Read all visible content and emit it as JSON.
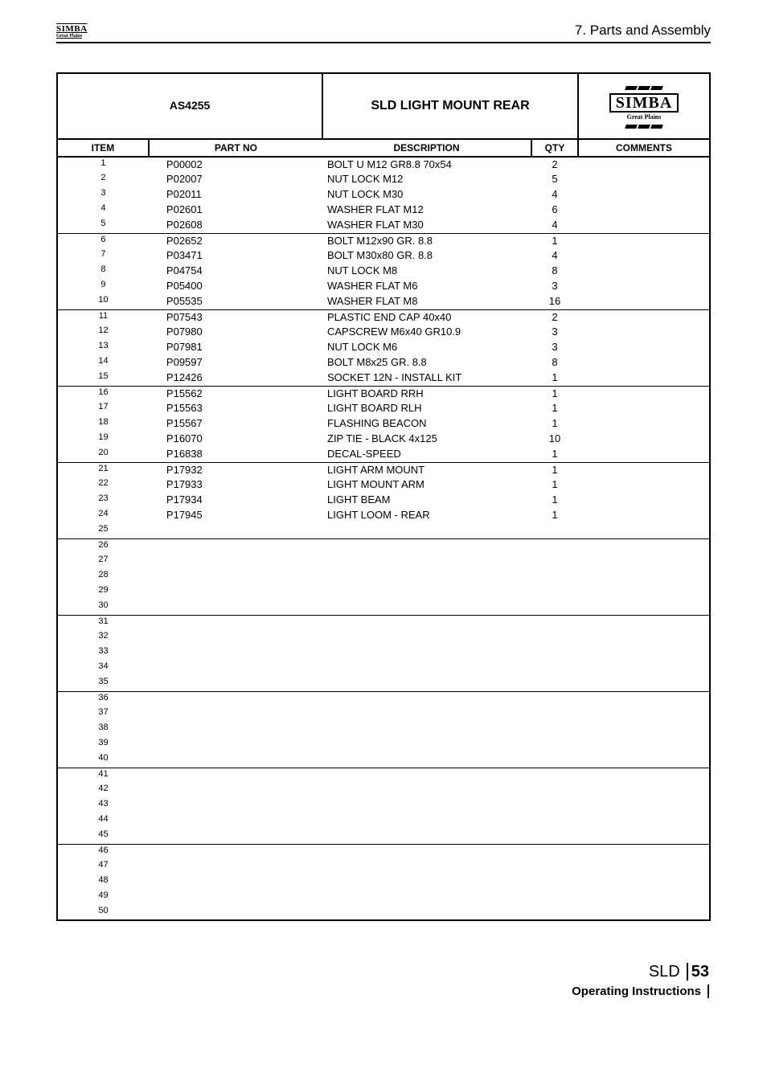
{
  "header": {
    "section_title": "7. Parts and Assembly",
    "small_logo_line1": "SIMBA",
    "small_logo_line2": "Great Plains"
  },
  "table_header": {
    "as_number": "AS4255",
    "title": "SLD LIGHT MOUNT REAR",
    "logo_text": "SIMBA",
    "logo_sub": "Great Plains"
  },
  "columns": {
    "item": "ITEM",
    "part": "PART NO",
    "desc": "DESCRIPTION",
    "qty": "QTY",
    "comm": "COMMENTS"
  },
  "rows": [
    {
      "item": "1",
      "part": "P00002",
      "desc": "BOLT U M12 GR8.8 70x54",
      "qty": "2",
      "sep": false
    },
    {
      "item": "2",
      "part": "P02007",
      "desc": "NUT LOCK M12",
      "qty": "5",
      "sep": false
    },
    {
      "item": "3",
      "part": "P02011",
      "desc": "NUT LOCK M30",
      "qty": "4",
      "sep": false
    },
    {
      "item": "4",
      "part": "P02601",
      "desc": "WASHER FLAT M12",
      "qty": "6",
      "sep": false
    },
    {
      "item": "5",
      "part": "P02608",
      "desc": "WASHER FLAT M30",
      "qty": "4",
      "sep": true
    },
    {
      "item": "6",
      "part": "P02652",
      "desc": "BOLT M12x90 GR. 8.8",
      "qty": "1",
      "sep": false
    },
    {
      "item": "7",
      "part": "P03471",
      "desc": "BOLT M30x80 GR. 8.8",
      "qty": "4",
      "sep": false
    },
    {
      "item": "8",
      "part": "P04754",
      "desc": "NUT LOCK M8",
      "qty": "8",
      "sep": false
    },
    {
      "item": "9",
      "part": "P05400",
      "desc": "WASHER FLAT M6",
      "qty": "3",
      "sep": false
    },
    {
      "item": "10",
      "part": "P05535",
      "desc": "WASHER FLAT M8",
      "qty": "16",
      "sep": true
    },
    {
      "item": "11",
      "part": "P07543",
      "desc": "PLASTIC END CAP 40x40",
      "qty": "2",
      "sep": false
    },
    {
      "item": "12",
      "part": "P07980",
      "desc": "CAPSCREW M6x40 GR10.9",
      "qty": "3",
      "sep": false
    },
    {
      "item": "13",
      "part": "P07981",
      "desc": "NUT LOCK M6",
      "qty": "3",
      "sep": false
    },
    {
      "item": "14",
      "part": "P09597",
      "desc": "BOLT M8x25 GR. 8.8",
      "qty": "8",
      "sep": false
    },
    {
      "item": "15",
      "part": "P12426",
      "desc": "SOCKET 12N - INSTALL KIT",
      "qty": "1",
      "sep": true
    },
    {
      "item": "16",
      "part": "P15562",
      "desc": "LIGHT BOARD RRH",
      "qty": "1",
      "sep": false
    },
    {
      "item": "17",
      "part": "P15563",
      "desc": "LIGHT BOARD RLH",
      "qty": "1",
      "sep": false
    },
    {
      "item": "18",
      "part": "P15567",
      "desc": "FLASHING BEACON",
      "qty": "1",
      "sep": false
    },
    {
      "item": "19",
      "part": "P16070",
      "desc": "ZIP TIE - BLACK 4x125",
      "qty": "10",
      "sep": false
    },
    {
      "item": "20",
      "part": "P16838",
      "desc": "DECAL-SPEED",
      "qty": "1",
      "sep": true
    },
    {
      "item": "21",
      "part": "P17932",
      "desc": "LIGHT ARM MOUNT",
      "qty": "1",
      "sep": false
    },
    {
      "item": "22",
      "part": "P17933",
      "desc": "LIGHT MOUNT ARM",
      "qty": "1",
      "sep": false
    },
    {
      "item": "23",
      "part": "P17934",
      "desc": "LIGHT BEAM",
      "qty": "1",
      "sep": false
    },
    {
      "item": "24",
      "part": "P17945",
      "desc": "LIGHT LOOM - REAR",
      "qty": "1",
      "sep": false
    },
    {
      "item": "25",
      "part": "",
      "desc": "",
      "qty": "",
      "sep": true
    },
    {
      "item": "26",
      "part": "",
      "desc": "",
      "qty": "",
      "sep": false
    },
    {
      "item": "27",
      "part": "",
      "desc": "",
      "qty": "",
      "sep": false
    },
    {
      "item": "28",
      "part": "",
      "desc": "",
      "qty": "",
      "sep": false
    },
    {
      "item": "29",
      "part": "",
      "desc": "",
      "qty": "",
      "sep": false
    },
    {
      "item": "30",
      "part": "",
      "desc": "",
      "qty": "",
      "sep": true
    },
    {
      "item": "31",
      "part": "",
      "desc": "",
      "qty": "",
      "sep": false
    },
    {
      "item": "32",
      "part": "",
      "desc": "",
      "qty": "",
      "sep": false
    },
    {
      "item": "33",
      "part": "",
      "desc": "",
      "qty": "",
      "sep": false
    },
    {
      "item": "34",
      "part": "",
      "desc": "",
      "qty": "",
      "sep": false
    },
    {
      "item": "35",
      "part": "",
      "desc": "",
      "qty": "",
      "sep": true
    },
    {
      "item": "36",
      "part": "",
      "desc": "",
      "qty": "",
      "sep": false
    },
    {
      "item": "37",
      "part": "",
      "desc": "",
      "qty": "",
      "sep": false
    },
    {
      "item": "38",
      "part": "",
      "desc": "",
      "qty": "",
      "sep": false
    },
    {
      "item": "39",
      "part": "",
      "desc": "",
      "qty": "",
      "sep": false
    },
    {
      "item": "40",
      "part": "",
      "desc": "",
      "qty": "",
      "sep": true
    },
    {
      "item": "41",
      "part": "",
      "desc": "",
      "qty": "",
      "sep": false
    },
    {
      "item": "42",
      "part": "",
      "desc": "",
      "qty": "",
      "sep": false
    },
    {
      "item": "43",
      "part": "",
      "desc": "",
      "qty": "",
      "sep": false
    },
    {
      "item": "44",
      "part": "",
      "desc": "",
      "qty": "",
      "sep": false
    },
    {
      "item": "45",
      "part": "",
      "desc": "",
      "qty": "",
      "sep": true
    },
    {
      "item": "46",
      "part": "",
      "desc": "",
      "qty": "",
      "sep": false
    },
    {
      "item": "47",
      "part": "",
      "desc": "",
      "qty": "",
      "sep": false
    },
    {
      "item": "48",
      "part": "",
      "desc": "",
      "qty": "",
      "sep": false
    },
    {
      "item": "49",
      "part": "",
      "desc": "",
      "qty": "",
      "sep": false
    },
    {
      "item": "50",
      "part": "",
      "desc": "",
      "qty": "",
      "sep": false
    }
  ],
  "footer": {
    "sld": "SLD",
    "page": "53",
    "opins": "Operating Instructions"
  }
}
